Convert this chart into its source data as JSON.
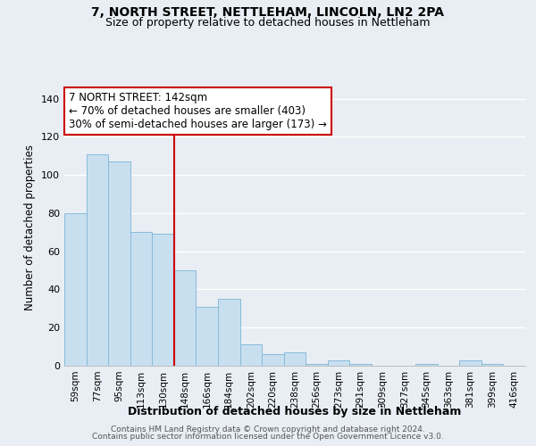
{
  "title1": "7, NORTH STREET, NETTLEHAM, LINCOLN, LN2 2PA",
  "title2": "Size of property relative to detached houses in Nettleham",
  "xlabel": "Distribution of detached houses by size in Nettleham",
  "ylabel": "Number of detached properties",
  "categories": [
    "59sqm",
    "77sqm",
    "95sqm",
    "113sqm",
    "130sqm",
    "148sqm",
    "166sqm",
    "184sqm",
    "202sqm",
    "220sqm",
    "238sqm",
    "256sqm",
    "273sqm",
    "291sqm",
    "309sqm",
    "327sqm",
    "345sqm",
    "363sqm",
    "381sqm",
    "399sqm",
    "416sqm"
  ],
  "values": [
    80,
    111,
    107,
    70,
    69,
    50,
    31,
    35,
    11,
    6,
    7,
    1,
    3,
    1,
    0,
    0,
    1,
    0,
    3,
    1,
    0
  ],
  "bar_color": "#c8dff0",
  "bar_edge_color": "#88bbd8",
  "annotation_title": "7 NORTH STREET: 142sqm",
  "annotation_line1": "← 70% of detached houses are smaller (403)",
  "annotation_line2": "30% of semi-detached houses are larger (173) →",
  "annotation_box_color": "#ffffff",
  "annotation_box_edge": "#cc0000",
  "red_line_color": "#cc0000",
  "ylim": [
    0,
    145
  ],
  "yticks": [
    0,
    20,
    40,
    60,
    80,
    100,
    120,
    140
  ],
  "footer1": "Contains HM Land Registry data © Crown copyright and database right 2024.",
  "footer2": "Contains public sector information licensed under the Open Government Licence v3.0.",
  "background_color": "#e8eef4",
  "grid_color": "#ffffff",
  "title1_fontsize": 10,
  "title2_fontsize": 9,
  "ylabel_fontsize": 8.5,
  "xlabel_fontsize": 9,
  "tick_fontsize": 7.5,
  "ytick_fontsize": 8,
  "footer_fontsize": 6.5,
  "ann_fontsize": 8.5,
  "red_line_index": 4.5
}
